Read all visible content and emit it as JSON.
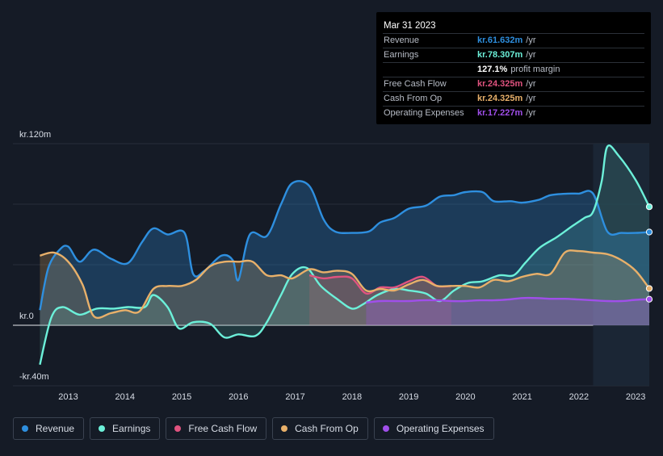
{
  "chart_data": {
    "type": "line",
    "currency_prefix": "kr.",
    "y_axis": {
      "top_label": "kr.120m",
      "zero_label": "kr.0",
      "bottom_label": "-kr.40m",
      "ylim": [
        -40,
        120
      ]
    },
    "x_ticks": [
      "2013",
      "2014",
      "2015",
      "2016",
      "2017",
      "2018",
      "2019",
      "2020",
      "2021",
      "2022",
      "2023"
    ],
    "x_range": [
      2012.48,
      2023.24
    ],
    "highlight_start": 2022.25,
    "series": [
      {
        "key": "revenue",
        "name": "Revenue",
        "color": "#2e8fdf",
        "points": [
          [
            2012.5,
            10
          ],
          [
            2012.65,
            38
          ],
          [
            2012.85,
            50
          ],
          [
            2013.0,
            52
          ],
          [
            2013.2,
            42
          ],
          [
            2013.45,
            50
          ],
          [
            2013.75,
            44
          ],
          [
            2014.05,
            41
          ],
          [
            2014.3,
            55
          ],
          [
            2014.5,
            64
          ],
          [
            2014.75,
            60
          ],
          [
            2015.05,
            61
          ],
          [
            2015.2,
            34
          ],
          [
            2015.4,
            36
          ],
          [
            2015.7,
            46
          ],
          [
            2015.9,
            43
          ],
          [
            2016.0,
            30
          ],
          [
            2016.2,
            60
          ],
          [
            2016.5,
            59
          ],
          [
            2016.75,
            80
          ],
          [
            2016.95,
            94
          ],
          [
            2017.25,
            92
          ],
          [
            2017.5,
            70
          ],
          [
            2017.7,
            62
          ],
          [
            2018.0,
            61
          ],
          [
            2018.3,
            62
          ],
          [
            2018.5,
            68
          ],
          [
            2018.75,
            71
          ],
          [
            2019.0,
            77
          ],
          [
            2019.3,
            79
          ],
          [
            2019.55,
            85
          ],
          [
            2019.8,
            86
          ],
          [
            2020.0,
            88
          ],
          [
            2020.3,
            88
          ],
          [
            2020.5,
            82
          ],
          [
            2020.8,
            82
          ],
          [
            2021.0,
            81
          ],
          [
            2021.3,
            83
          ],
          [
            2021.5,
            86
          ],
          [
            2021.8,
            87
          ],
          [
            2022.0,
            87
          ],
          [
            2022.25,
            87
          ],
          [
            2022.5,
            62
          ],
          [
            2022.75,
            61
          ],
          [
            2023.0,
            61
          ],
          [
            2023.24,
            61.6
          ]
        ]
      },
      {
        "key": "earnings",
        "name": "Earnings",
        "color": "#6cf0d9",
        "points": [
          [
            2012.5,
            -26
          ],
          [
            2012.7,
            5
          ],
          [
            2012.9,
            12
          ],
          [
            2013.2,
            7
          ],
          [
            2013.5,
            11
          ],
          [
            2013.8,
            11
          ],
          [
            2014.05,
            12
          ],
          [
            2014.35,
            12
          ],
          [
            2014.5,
            20
          ],
          [
            2014.75,
            12
          ],
          [
            2014.95,
            -2
          ],
          [
            2015.2,
            2
          ],
          [
            2015.5,
            1
          ],
          [
            2015.75,
            -8
          ],
          [
            2016.0,
            -6
          ],
          [
            2016.3,
            -7
          ],
          [
            2016.5,
            2
          ],
          [
            2016.75,
            20
          ],
          [
            2016.95,
            34
          ],
          [
            2017.2,
            38
          ],
          [
            2017.45,
            26
          ],
          [
            2017.75,
            17
          ],
          [
            2018.0,
            11
          ],
          [
            2018.2,
            14
          ],
          [
            2018.45,
            20
          ],
          [
            2018.75,
            24
          ],
          [
            2019.0,
            23
          ],
          [
            2019.3,
            21
          ],
          [
            2019.55,
            16
          ],
          [
            2019.8,
            23
          ],
          [
            2020.05,
            28
          ],
          [
            2020.3,
            29
          ],
          [
            2020.6,
            33
          ],
          [
            2020.85,
            33
          ],
          [
            2021.05,
            41
          ],
          [
            2021.3,
            51
          ],
          [
            2021.6,
            58
          ],
          [
            2021.9,
            66
          ],
          [
            2022.1,
            71
          ],
          [
            2022.25,
            75
          ],
          [
            2022.4,
            95
          ],
          [
            2022.5,
            118
          ],
          [
            2022.7,
            112
          ],
          [
            2023.0,
            96
          ],
          [
            2023.24,
            78.3
          ]
        ]
      },
      {
        "key": "fcf",
        "name": "Free Cash Flow",
        "color": "#e0537f",
        "points": [
          [
            2017.25,
            33
          ],
          [
            2017.5,
            31
          ],
          [
            2017.75,
            32
          ],
          [
            2018.0,
            31
          ],
          [
            2018.25,
            21
          ],
          [
            2018.5,
            25
          ],
          [
            2018.75,
            25
          ],
          [
            2019.0,
            29
          ],
          [
            2019.25,
            32
          ],
          [
            2019.5,
            26
          ],
          [
            2019.75,
            26
          ]
        ]
      },
      {
        "key": "cfo",
        "name": "Cash From Op",
        "color": "#e8b06a",
        "points": [
          [
            2012.5,
            46
          ],
          [
            2012.75,
            48
          ],
          [
            2013.0,
            42
          ],
          [
            2013.25,
            27
          ],
          [
            2013.45,
            6
          ],
          [
            2013.75,
            8
          ],
          [
            2014.0,
            10
          ],
          [
            2014.25,
            9
          ],
          [
            2014.5,
            24
          ],
          [
            2014.75,
            26
          ],
          [
            2015.0,
            26
          ],
          [
            2015.25,
            30
          ],
          [
            2015.5,
            39
          ],
          [
            2015.75,
            42
          ],
          [
            2016.0,
            42
          ],
          [
            2016.25,
            42
          ],
          [
            2016.5,
            33
          ],
          [
            2016.75,
            33
          ],
          [
            2016.95,
            31
          ],
          [
            2017.25,
            37
          ],
          [
            2017.5,
            35
          ],
          [
            2017.75,
            36
          ],
          [
            2018.0,
            34
          ],
          [
            2018.25,
            23
          ],
          [
            2018.5,
            24
          ],
          [
            2018.75,
            23
          ],
          [
            2019.0,
            27
          ],
          [
            2019.25,
            30
          ],
          [
            2019.5,
            26
          ],
          [
            2019.75,
            26
          ],
          [
            2020.0,
            26
          ],
          [
            2020.25,
            25
          ],
          [
            2020.5,
            30
          ],
          [
            2020.75,
            29
          ],
          [
            2021.0,
            32
          ],
          [
            2021.25,
            34
          ],
          [
            2021.5,
            34
          ],
          [
            2021.75,
            48
          ],
          [
            2022.0,
            49
          ],
          [
            2022.25,
            48
          ],
          [
            2022.5,
            47
          ],
          [
            2022.75,
            43
          ],
          [
            2023.0,
            36
          ],
          [
            2023.24,
            24.3
          ]
        ]
      },
      {
        "key": "opex",
        "name": "Operating Expenses",
        "color": "#a04fea",
        "points": [
          [
            2018.25,
            15
          ],
          [
            2018.5,
            16
          ],
          [
            2018.75,
            16
          ],
          [
            2019.0,
            16
          ],
          [
            2019.25,
            16.5
          ],
          [
            2019.5,
            16.5
          ],
          [
            2019.75,
            16
          ],
          [
            2020.0,
            16
          ],
          [
            2020.25,
            16.5
          ],
          [
            2020.5,
            16.5
          ],
          [
            2020.75,
            17
          ],
          [
            2021.0,
            18
          ],
          [
            2021.25,
            18
          ],
          [
            2021.5,
            17.5
          ],
          [
            2021.75,
            17.5
          ],
          [
            2022.0,
            17
          ],
          [
            2022.25,
            16.5
          ],
          [
            2022.5,
            16
          ],
          [
            2022.75,
            16
          ],
          [
            2023.0,
            16.8
          ],
          [
            2023.24,
            17.2
          ]
        ]
      }
    ]
  },
  "tooltip": {
    "date": "Mar 31 2023",
    "rows": [
      {
        "label": "Revenue",
        "value": "kr.61.632m",
        "unit": "/yr",
        "color": "#2e8fdf"
      },
      {
        "label": "Earnings",
        "value": "kr.78.307m",
        "unit": "/yr",
        "color": "#6cf0d9"
      },
      {
        "label": "",
        "value": "127.1%",
        "unit": "profit margin",
        "color": "#ffffff"
      },
      {
        "label": "Free Cash Flow",
        "value": "kr.24.325m",
        "unit": "/yr",
        "color": "#e0537f"
      },
      {
        "label": "Cash From Op",
        "value": "kr.24.325m",
        "unit": "/yr",
        "color": "#e8b06a"
      },
      {
        "label": "Operating Expenses",
        "value": "kr.17.227m",
        "unit": "/yr",
        "color": "#a04fea"
      }
    ]
  },
  "legend": [
    {
      "label": "Revenue",
      "color": "#2e8fdf"
    },
    {
      "label": "Earnings",
      "color": "#6cf0d9"
    },
    {
      "label": "Free Cash Flow",
      "color": "#e0537f"
    },
    {
      "label": "Cash From Op",
      "color": "#e8b06a"
    },
    {
      "label": "Operating Expenses",
      "color": "#a04fea"
    }
  ]
}
